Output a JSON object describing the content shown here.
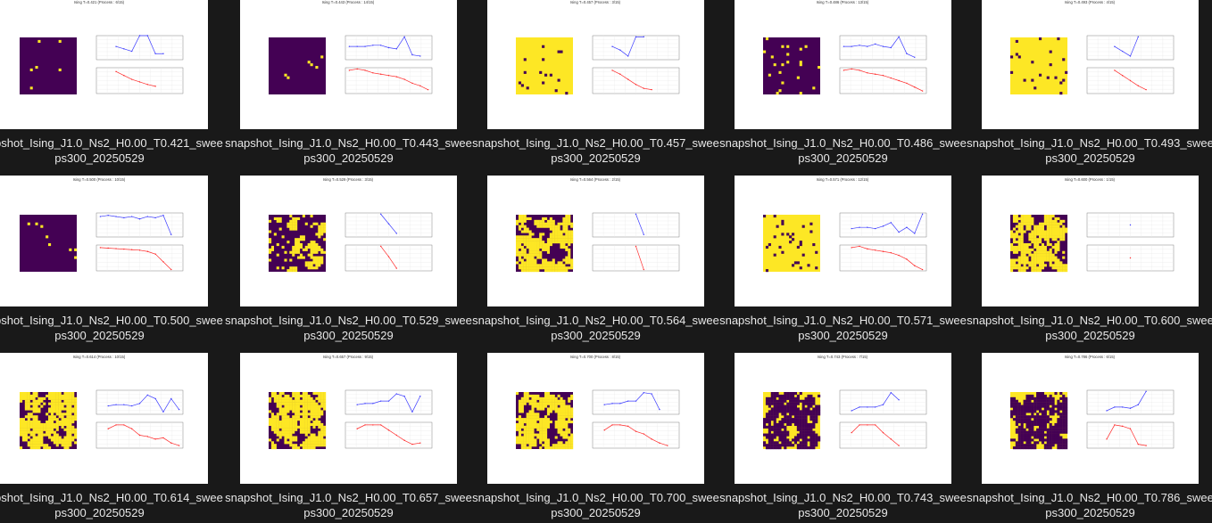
{
  "colors": {
    "background": "#191919",
    "caption_text": "#e8e8e8",
    "spin_down": "#440154",
    "spin_up": "#fde725",
    "magnetization_line": "#3b3bff",
    "energy_line": "#ff2a2a"
  },
  "items": [
    {
      "name": "snapshot_Ising_J1.0_Ns2_H0.00_T0.421_sweeps300_20250529",
      "caption_line1": "snapshot_Ising_J1.0_Ns2_H0.00_T0.421_swee",
      "caption_line2": "ps300_20250529",
      "plot_title": "Ising  T=0.421 (Process : 6/15)",
      "dominant": "down",
      "density": 0.03,
      "mag": [
        0.55,
        0.45,
        0.35,
        1.0,
        1.0,
        0.25,
        0.25
      ],
      "mag_first": 2,
      "energy": [
        0.85,
        0.7,
        0.55,
        0.45,
        0.35,
        0.28
      ]
    },
    {
      "name": "snapshot_Ising_J1.0_Ns2_H0.00_T0.443_sweeps300_20250529",
      "caption_line1": "snapshot_Ising_J1.0_Ns2_H0.00_T0.443_swee",
      "caption_line2": "ps300_20250529",
      "plot_title": "Ising  T=0.443 (Process : 14/15)",
      "dominant": "down",
      "density": 0.04,
      "mag": [
        0.55,
        0.55,
        0.55,
        0.6,
        0.6,
        0.5,
        0.45,
        0.95,
        0.2,
        0.15
      ],
      "mag_first": 0,
      "energy": [
        0.9,
        0.95,
        0.9,
        0.8,
        0.75,
        0.7,
        0.65,
        0.55,
        0.4,
        0.3,
        0.15
      ]
    },
    {
      "name": "snapshot_Ising_J1.0_Ns2_H0.00_T0.457_sweeps300_20250529",
      "caption_line1": "snapshot_Ising_J1.0_Ns2_H0.00_T0.457_swee",
      "caption_line2": "ps300_20250529",
      "plot_title": "Ising  T=0.457 (Process : 3/15)",
      "dominant": "up",
      "density": 0.07,
      "mag": [
        0.55,
        0.4,
        0.15,
        0.95,
        0.95
      ],
      "mag_first": 2,
      "energy": [
        0.9,
        0.75,
        0.55,
        0.35,
        0.2,
        0.15
      ]
    },
    {
      "name": "snapshot_Ising_J1.0_Ns2_H0.00_T0.486_sweeps300_20250529",
      "caption_line1": "snapshot_Ising_J1.0_Ns2_H0.00_T0.486_swee",
      "caption_line2": "ps300_20250529",
      "plot_title": "Ising  T=0.486 (Process : 13/15)",
      "dominant": "down",
      "density": 0.08,
      "mag": [
        0.55,
        0.55,
        0.6,
        0.55,
        0.65,
        0.55,
        0.5,
        0.95,
        0.25,
        0.1
      ],
      "mag_first": 0,
      "energy": [
        0.9,
        0.95,
        0.9,
        0.8,
        0.75,
        0.7,
        0.6,
        0.5,
        0.4,
        0.25,
        0.1
      ]
    },
    {
      "name": "snapshot_Ising_J1.0_Ns2_H0.00_T0.493_sweeps300_20250529",
      "caption_line1": "snapshot_Ising_J1.0_Ns2_H0.00_T0.493_swee",
      "caption_line2": "ps300_20250529",
      "plot_title": "Ising  T=0.493 (Process : 4/15)",
      "dominant": "up",
      "density": 0.07,
      "mag": [
        0.55,
        0.35,
        0.15,
        0.95
      ],
      "mag_first": 3,
      "energy": [
        0.9,
        0.7,
        0.5,
        0.3,
        0.15
      ]
    },
    {
      "name": "snapshot_Ising_J1.0_Ns2_H0.00_T0.500_sweeps300_20250529",
      "caption_line1": "snapshot_Ising_J1.0_Ns2_H0.00_T0.500_swee",
      "caption_line2": "ps300_20250529",
      "plot_title": "Ising  T=0.500 (Process : 10/15)",
      "dominant": "down",
      "density": 0.03,
      "mag": [
        0.85,
        0.9,
        0.85,
        0.8,
        0.85,
        0.75,
        0.85,
        0.8,
        0.9,
        0.1
      ],
      "mag_first": 0,
      "energy": [
        0.9,
        0.88,
        0.86,
        0.84,
        0.82,
        0.8,
        0.75,
        0.65,
        0.35,
        0.05
      ]
    },
    {
      "name": "snapshot_Ising_J1.0_Ns2_H0.00_T0.529_sweeps300_20250529",
      "caption_line1": "snapshot_Ising_J1.0_Ns2_H0.00_T0.529_swee",
      "caption_line2": "ps300_20250529",
      "plot_title": "Ising  T=0.529 (Process : 3/15)",
      "dominant": "down",
      "density": 0.3,
      "mag": [
        0.95,
        0.55,
        0.15
      ],
      "mag_first": 4,
      "energy": [
        0.95,
        0.55,
        0.1
      ]
    },
    {
      "name": "snapshot_Ising_J1.0_Ns2_H0.00_T0.564_sweeps300_20250529",
      "caption_line1": "snapshot_Ising_J1.0_Ns2_H0.00_T0.564_swee",
      "caption_line2": "ps300_20250529",
      "plot_title": "Ising  T=0.564 (Process : 2/15)",
      "dominant": "down",
      "density": 0.45,
      "mag": [
        0.95,
        0.1
      ],
      "mag_first": 5,
      "energy": [
        0.95,
        0.05
      ]
    },
    {
      "name": "snapshot_Ising_J1.0_Ns2_H0.00_T0.571_sweeps300_20250529",
      "caption_line1": "snapshot_Ising_J1.0_Ns2_H0.00_T0.571_swee",
      "caption_line2": "ps300_20250529",
      "plot_title": "Ising  T=0.571 (Process : 12/15)",
      "dominant": "up",
      "density": 0.12,
      "mag": [
        0.35,
        0.4,
        0.4,
        0.35,
        0.45,
        0.6,
        0.2,
        0.4,
        0.15,
        0.95
      ],
      "mag_first": 1,
      "energy": [
        0.9,
        0.95,
        0.85,
        0.8,
        0.75,
        0.7,
        0.6,
        0.45,
        0.2,
        0.05
      ]
    },
    {
      "name": "snapshot_Ising_J1.0_Ns2_H0.00_T0.600_sweeps300_20250529",
      "caption_line1": "snapshot_Ising_J1.0_Ns2_H0.00_T0.600_swee",
      "caption_line2": "ps300_20250529",
      "plot_title": "Ising  T=0.600 (Process : 1/15)",
      "dominant": "down",
      "density": 0.45,
      "mag": [
        0.5
      ],
      "mag_first": 5,
      "energy": [
        0.5
      ]
    },
    {
      "name": "snapshot_Ising_J1.0_Ns2_H0.00_T0.614_sweeps300_20250529",
      "caption_line1": "snapshot_Ising_J1.0_Ns2_H0.00_T0.614_swee",
      "caption_line2": "ps300_20250529",
      "plot_title": "Ising  T=0.614 (Process : 10/15)",
      "dominant": "down",
      "density": 0.45,
      "mag": [
        0.35,
        0.4,
        0.4,
        0.35,
        0.45,
        0.8,
        0.65,
        0.1,
        0.65,
        0.2
      ],
      "mag_first": 1,
      "energy": [
        0.75,
        0.9,
        0.9,
        0.75,
        0.5,
        0.45,
        0.35,
        0.4,
        0.2,
        0.1
      ]
    },
    {
      "name": "snapshot_Ising_J1.0_Ns2_H0.00_T0.657_sweeps300_20250529",
      "caption_line1": "snapshot_Ising_J1.0_Ns2_H0.00_T0.657_swee",
      "caption_line2": "ps300_20250529",
      "plot_title": "Ising  T=0.657 (Process : 9/15)",
      "dominant": "down",
      "density": 0.5,
      "mag": [
        0.4,
        0.45,
        0.45,
        0.55,
        0.55,
        0.85,
        0.75,
        0.1,
        0.75
      ],
      "mag_first": 1,
      "energy": [
        0.75,
        0.9,
        0.9,
        0.9,
        0.7,
        0.5,
        0.3,
        0.15,
        0.2
      ]
    },
    {
      "name": "snapshot_Ising_J1.0_Ns2_H0.00_T0.700_sweeps300_20250529",
      "caption_line1": "snapshot_Ising_J1.0_Ns2_H0.00_T0.700_swee",
      "caption_line2": "ps300_20250529",
      "plot_title": "Ising  T=0.700 (Process : 8/15)",
      "dominant": "down",
      "density": 0.5,
      "mag": [
        0.4,
        0.45,
        0.45,
        0.55,
        0.55,
        0.9,
        0.85,
        0.2
      ],
      "mag_first": 1,
      "energy": [
        0.7,
        0.9,
        0.9,
        0.85,
        0.65,
        0.55,
        0.35,
        0.2,
        0.1
      ]
    },
    {
      "name": "snapshot_Ising_J1.0_Ns2_H0.00_T0.743_sweeps300_20250529",
      "caption_line1": "snapshot_Ising_J1.0_Ns2_H0.00_T0.743_swee",
      "caption_line2": "ps300_20250529",
      "plot_title": "Ising  T=0.743 (Process : 7/15)",
      "dominant": "up",
      "density": 0.5,
      "mag": [
        0.15,
        0.3,
        0.3,
        0.3,
        0.4,
        0.9,
        0.6
      ],
      "mag_first": 1,
      "energy": [
        0.6,
        0.9,
        0.9,
        0.9,
        0.6,
        0.35,
        0.1
      ]
    },
    {
      "name": "snapshot_Ising_J1.0_Ns2_H0.00_T0.786_sweeps300_20250529",
      "caption_line1": "snapshot_Ising_J1.0_Ns2_H0.00_T0.786_swee",
      "caption_line2": "ps300_20250529",
      "plot_title": "Ising  T=0.786 (Process : 6/15)",
      "dominant": "up",
      "density": 0.5,
      "mag": [
        0.15,
        0.3,
        0.3,
        0.25,
        0.4,
        0.95
      ],
      "mag_first": 2,
      "energy": [
        0.35,
        0.9,
        0.85,
        0.75,
        0.15,
        0.1
      ]
    }
  ]
}
